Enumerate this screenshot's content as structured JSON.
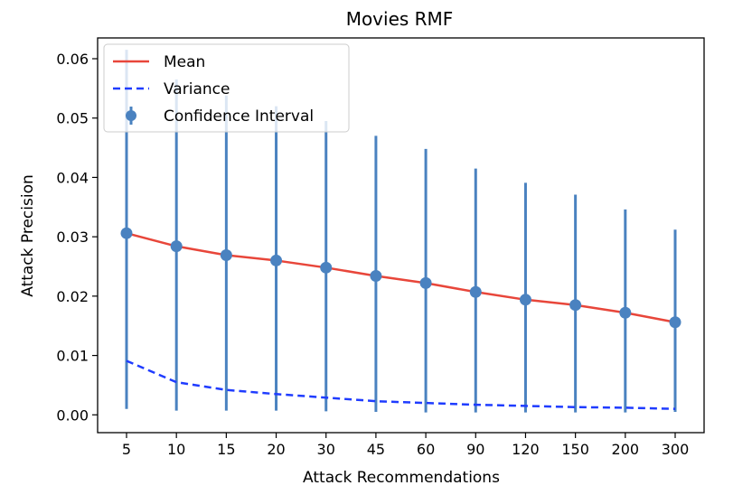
{
  "chart_data": {
    "type": "line",
    "title": "Movies RMF",
    "xlabel": "Attack Recommendations",
    "ylabel": "Attack Precision",
    "categories": [
      "5",
      "10",
      "15",
      "20",
      "30",
      "45",
      "60",
      "90",
      "120",
      "150",
      "200",
      "300"
    ],
    "ylim": [
      -0.003,
      0.0635
    ],
    "yticks": [
      "0.00",
      "0.01",
      "0.02",
      "0.03",
      "0.04",
      "0.05",
      "0.06"
    ],
    "ytick_values": [
      0.0,
      0.01,
      0.02,
      0.03,
      0.04,
      0.05,
      0.06
    ],
    "grid": false,
    "legend_position": "top-left",
    "series": [
      {
        "name": "Mean",
        "style": "solid",
        "color": "#e8463a",
        "values": [
          0.0306,
          0.0284,
          0.0269,
          0.026,
          0.0248,
          0.0234,
          0.0222,
          0.0207,
          0.0194,
          0.0185,
          0.0172,
          0.0156
        ]
      },
      {
        "name": "Variance",
        "style": "dashed",
        "color": "#1f3cff",
        "values": [
          0.0091,
          0.0055,
          0.0042,
          0.0035,
          0.0029,
          0.0023,
          0.002,
          0.0017,
          0.0015,
          0.0013,
          0.0012,
          0.001
        ]
      },
      {
        "name": "Confidence Interval",
        "style": "errorbar",
        "color": "#4a82c0",
        "center": [
          0.0306,
          0.0284,
          0.0269,
          0.026,
          0.0248,
          0.0234,
          0.0222,
          0.0207,
          0.0194,
          0.0185,
          0.0172,
          0.0156
        ],
        "lower": [
          0.001,
          0.0007,
          0.0007,
          0.0007,
          0.0006,
          0.0005,
          0.0004,
          0.0004,
          0.0004,
          0.0004,
          0.0004,
          0.0005
        ],
        "upper": [
          0.0615,
          0.0565,
          0.0538,
          0.052,
          0.0495,
          0.047,
          0.0448,
          0.0415,
          0.0391,
          0.0371,
          0.0346,
          0.0312
        ]
      }
    ]
  }
}
